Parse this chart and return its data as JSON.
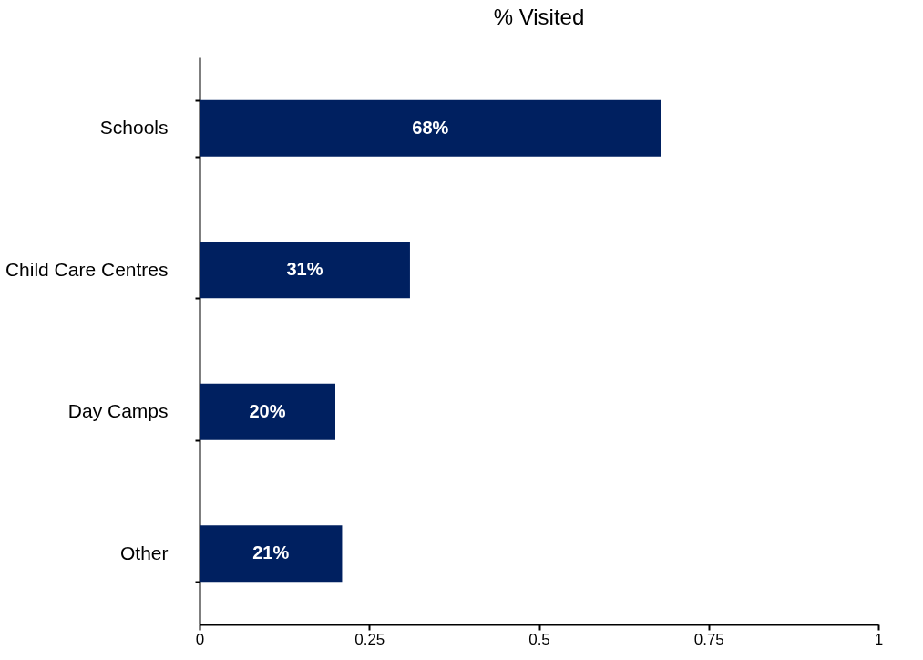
{
  "chart_data": {
    "type": "bar",
    "orientation": "horizontal",
    "title": "% Visited",
    "categories": [
      "Schools",
      "Child Care Centres",
      "Day Camps",
      "Other"
    ],
    "values": [
      0.68,
      0.31,
      0.2,
      0.21
    ],
    "value_labels": [
      "68%",
      "31%",
      "20%",
      "21%"
    ],
    "color": "#002060",
    "xlim": [
      0,
      1
    ],
    "xticks": [
      0,
      0.25,
      0.5,
      0.75,
      1
    ],
    "grid": false
  }
}
